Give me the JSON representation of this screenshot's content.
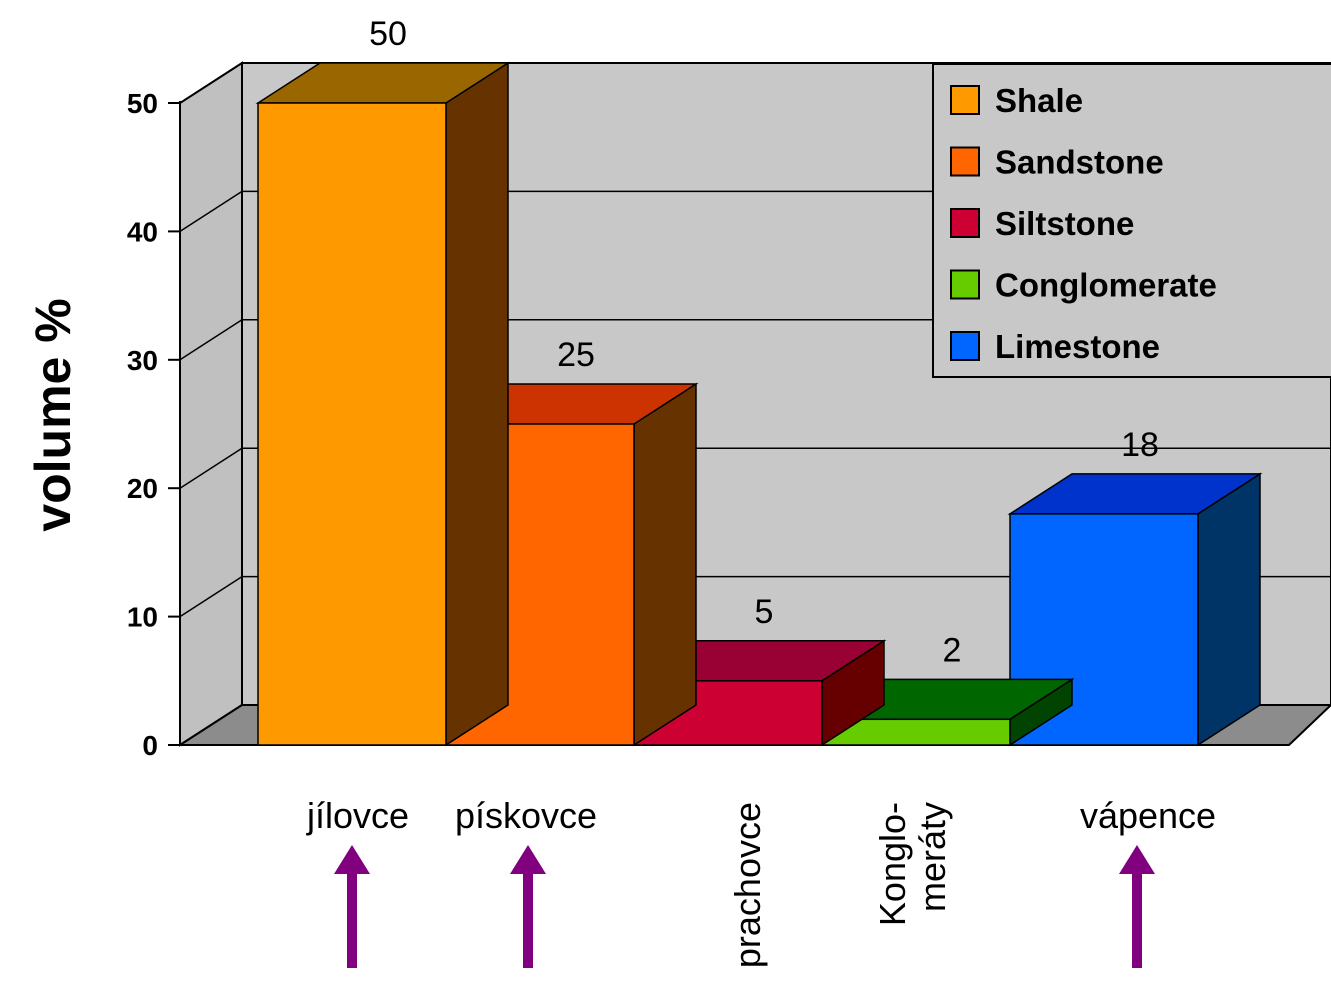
{
  "chart_data": {
    "type": "bar",
    "style": "3d",
    "categories": [
      "jílovce",
      "pískovce",
      "prachovce",
      "Konglo-\nmeráty",
      "vápence"
    ],
    "series": [
      {
        "name": "Shale",
        "values": [
          50,
          null,
          null,
          null,
          null
        ],
        "color": "#FF9900",
        "top_color": "#996600",
        "side_color": "#663300"
      },
      {
        "name": "Sandstone",
        "values": [
          null,
          25,
          null,
          null,
          null
        ],
        "color": "#FF6600",
        "top_color": "#CC3300",
        "side_color": "#663300"
      },
      {
        "name": "Siltstone",
        "values": [
          null,
          null,
          5,
          null,
          null
        ],
        "color": "#CC0033",
        "top_color": "#990033",
        "side_color": "#660000"
      },
      {
        "name": "Conglomerate",
        "values": [
          null,
          null,
          null,
          2,
          null
        ],
        "color": "#66CC00",
        "top_color": "#006600",
        "side_color": "#004400"
      },
      {
        "name": "Limestone",
        "values": [
          null,
          null,
          null,
          null,
          18
        ],
        "color": "#0066FF",
        "top_color": "#0033CC",
        "side_color": "#003366"
      }
    ],
    "values": [
      50,
      25,
      5,
      2,
      18
    ],
    "data_labels": [
      "50",
      "25",
      "5",
      "2",
      "18"
    ],
    "ylabel": "volume %",
    "ylim": [
      0,
      50
    ],
    "yticks": [
      "0",
      "10",
      "20",
      "30",
      "40",
      "50"
    ],
    "grid": true,
    "legend_position": "top-right",
    "highlighted_categories": [
      "jílovce",
      "pískovce",
      "vápence"
    ],
    "arrow_color": "#800080"
  }
}
